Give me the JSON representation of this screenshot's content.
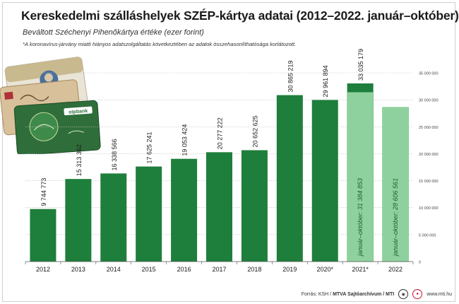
{
  "title": "Kereskedelmi szálláshelyek SZÉP-kártya adatai (2012–2022. január–október)",
  "subtitle": "Beváltott Széchenyi Pihenőkártya értéke (ezer forint)",
  "note": "*A koronavírus-járvány miatti hiányos adatszolgáltatás következtében az adatok összehasonlíthatósága korlátozott.",
  "footer": {
    "source_prefix": "Forrás: KSH /",
    "source_bold": "MTVA Sajtóarchívum / MTI",
    "website": "www.mti.hu"
  },
  "card_labels": {
    "bank": "otpbank"
  },
  "colors": {
    "bar_dark": "#1e7e3b",
    "bar_light": "#8fd19e",
    "bar_light_border": "#6bbf80",
    "grid": "#bdbdbd"
  },
  "chart_data": {
    "type": "bar",
    "categories": [
      "2012",
      "2013",
      "2014",
      "2015",
      "2016",
      "2017",
      "2018",
      "2019",
      "2020*",
      "2021*",
      "2022"
    ],
    "values": [
      9744773,
      15313362,
      16338566,
      17625241,
      19053424,
      20277222,
      20652625,
      30865219,
      29961894,
      33035179,
      null
    ],
    "value_labels": [
      "9 744 773",
      "15 313 362",
      "16 338 566",
      "17 625 241",
      "19 053 424",
      "20 277 222",
      "20 652 625",
      "30 865 219",
      "29 961 894",
      "33 035 179",
      ""
    ],
    "partial_series": {
      "label_prefix": "január–október:",
      "values": [
        null,
        null,
        null,
        null,
        null,
        null,
        null,
        null,
        null,
        31384853,
        28606561
      ],
      "value_labels": [
        "",
        "",
        "",
        "",
        "",
        "",
        "",
        "",
        "",
        "31 384 853",
        "28 606 561"
      ]
    },
    "ylim": [
      0,
      35000000
    ],
    "y_ticks": [
      0,
      5000000,
      10000000,
      15000000,
      20000000,
      25000000,
      30000000,
      35000000
    ],
    "y_tick_labels": [
      "0",
      "5 000 000",
      "10 000 000",
      "15 000 000",
      "20 000 000",
      "25 000 000",
      "30 000 000",
      "35 000 000"
    ],
    "y_axis_side": "right",
    "grid": true,
    "xlabel": "",
    "ylabel": ""
  }
}
